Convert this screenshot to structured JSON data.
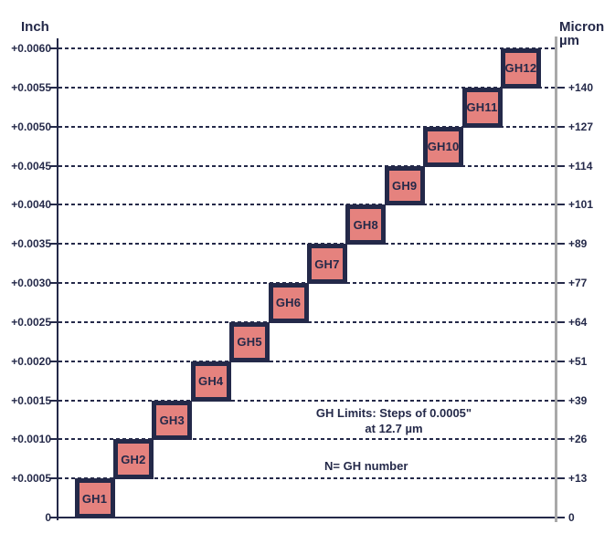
{
  "colors": {
    "background": "#ffffff",
    "box_fill": "#e5827e",
    "box_border": "#242949",
    "axis_navy": "#242949",
    "right_axis_gray": "#a9a9a9",
    "text_navy": "#242949"
  },
  "left_axis": {
    "title": "Inch",
    "tick_labels": [
      "0",
      "+0.0005",
      "+0.0010",
      "+0.0015",
      "+0.0020",
      "+0.0025",
      "+0.0030",
      "+0.0035",
      "+0.0040",
      "+0.0045",
      "+0.0050",
      "+0.0055",
      "+0.0060"
    ]
  },
  "right_axis": {
    "title": "Micron",
    "unit": "µm",
    "tick_labels": [
      "0",
      "+13",
      "+26",
      "+39",
      "+51",
      "+64",
      "+77",
      "+89",
      "+101",
      "+114",
      "+127",
      "+140"
    ]
  },
  "annotations": {
    "steps_line1": "GH Limits: Steps of 0.0005\"",
    "steps_line2": "at 12.7 µm",
    "note": "N= GH number"
  },
  "chart_data": {
    "type": "bar",
    "variant": "staircase-tolerance-boxes",
    "categories": [
      "GH1",
      "GH2",
      "GH3",
      "GH4",
      "GH5",
      "GH6",
      "GH7",
      "GH8",
      "GH9",
      "GH10",
      "GH11",
      "GH12"
    ],
    "series": [
      {
        "name": "lower_limit_inch",
        "values": [
          0.0,
          0.0005,
          0.001,
          0.0015,
          0.002,
          0.0025,
          0.003,
          0.0035,
          0.004,
          0.0045,
          0.005,
          0.0055
        ]
      },
      {
        "name": "upper_limit_inch",
        "values": [
          0.0005,
          0.001,
          0.0015,
          0.002,
          0.0025,
          0.003,
          0.0035,
          0.004,
          0.0045,
          0.005,
          0.0055,
          0.006
        ]
      }
    ],
    "step_inch": 0.0005,
    "step_micron": 12.7,
    "y_axis_left": {
      "label": "Inch",
      "min": 0,
      "max": 0.006,
      "tick_step": 0.0005
    },
    "y_axis_right": {
      "label": "Micron µm",
      "tick_labels": [
        "0",
        "+13",
        "+26",
        "+39",
        "+51",
        "+64",
        "+77",
        "+89",
        "+101",
        "+114",
        "+127",
        "+140"
      ]
    },
    "grid": "dashed horizontal gridlines at every 0.0005 inch",
    "legend": "none",
    "notes": [
      "GH Limits: Steps of 0.0005\" at 12.7 µm",
      "N= GH number"
    ]
  }
}
